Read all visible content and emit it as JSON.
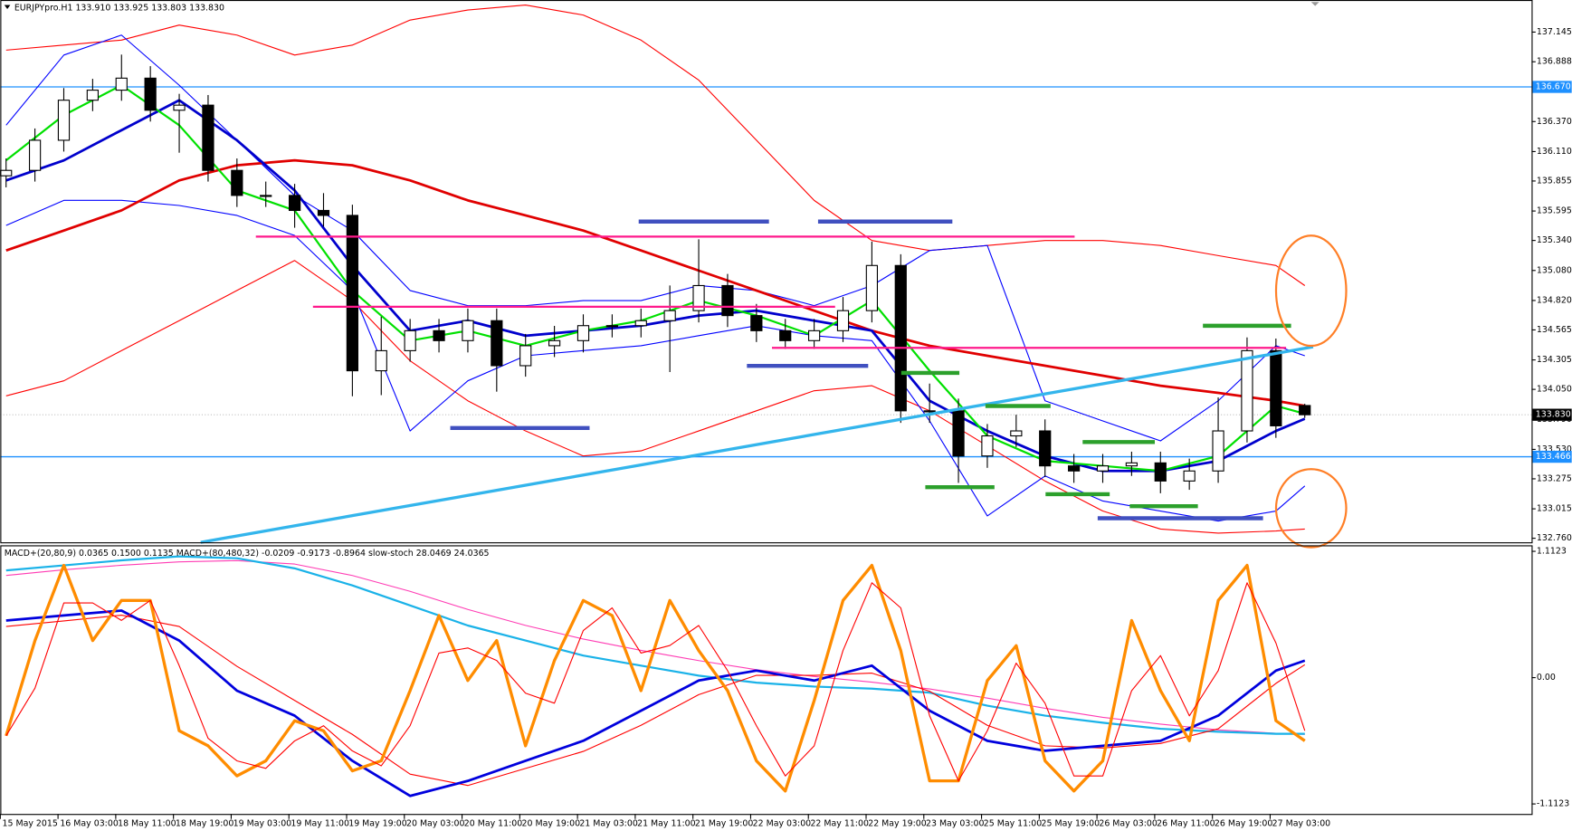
{
  "chart_data": {
    "type": "candlestick",
    "header": "EURJPYpro.H1  133.910 133.925 133.803 133.830",
    "up_color": "#ffffff",
    "down_color": "#000000",
    "xlim": [
      -0.2,
      52.86
    ],
    "xticks": [
      {
        "value": -0.2,
        "label": "15 May 2015"
      },
      {
        "value": 1.8,
        "label": "16 May 03:00"
      },
      {
        "value": 3.8,
        "label": "18 May 11:00"
      },
      {
        "value": 5.8,
        "label": "18 May 19:00"
      },
      {
        "value": 7.8,
        "label": "19 May 03:00"
      },
      {
        "value": 9.8,
        "label": "19 May 11:00"
      },
      {
        "value": 11.8,
        "label": "19 May 19:00"
      },
      {
        "value": 13.8,
        "label": "20 May 03:00"
      },
      {
        "value": 15.8,
        "label": "20 May 11:00"
      },
      {
        "value": 17.8,
        "label": "20 May 19:00"
      },
      {
        "value": 19.8,
        "label": "21 May 03:00"
      },
      {
        "value": 21.8,
        "label": "21 May 11:00"
      },
      {
        "value": 23.8,
        "label": "21 May 19:00"
      },
      {
        "value": 25.8,
        "label": "22 May 03:00"
      },
      {
        "value": 27.8,
        "label": "22 May 11:00"
      },
      {
        "value": 29.8,
        "label": "22 May 19:00"
      },
      {
        "value": 31.8,
        "label": "23 May 03:00"
      },
      {
        "value": 33.8,
        "label": "25 May 11:00"
      },
      {
        "value": 35.8,
        "label": "25 May 19:00"
      },
      {
        "value": 37.8,
        "label": "26 May 03:00"
      },
      {
        "value": 39.8,
        "label": "26 May 11:00"
      },
      {
        "value": 41.8,
        "label": "26 May 19:00"
      },
      {
        "value": 43.8,
        "label": "27 May 03:00"
      }
    ],
    "ylim": [
      132.725,
      137.423
    ],
    "yticks": [
      137.145,
      136.888,
      {
        "value": 136.37,
        "label": "136.370"
      },
      {
        "value": 136.11,
        "label": "136.110"
      },
      135.855,
      135.595,
      {
        "value": 135.34,
        "label": "135.340"
      },
      {
        "value": 135.08,
        "label": "135.080"
      },
      {
        "value": 134.82,
        "label": "134.820"
      },
      134.565,
      134.305,
      {
        "value": 134.05,
        "label": "134.050"
      },
      {
        "value": 133.79,
        "label": "133.790"
      },
      {
        "value": 133.53,
        "label": "133.530"
      },
      133.275,
      133.015,
      {
        "value": 132.76,
        "label": "132.760"
      }
    ],
    "hlines": [
      {
        "value": 136.67,
        "label": "136.670",
        "color": "#1e90ff"
      },
      {
        "value": 133.466,
        "color": "#1e90ff"
      }
    ],
    "price_line": {
      "value": 133.83,
      "label": "133.830"
    },
    "candles": [
      [
        135.9,
        136.05,
        135.8,
        135.947
      ],
      [
        135.947,
        136.31,
        135.85,
        136.208
      ],
      [
        136.208,
        136.66,
        136.11,
        136.555
      ],
      [
        136.555,
        136.74,
        136.46,
        136.642
      ],
      [
        136.642,
        136.95,
        136.55,
        136.746
      ],
      [
        136.746,
        136.85,
        136.37,
        136.468
      ],
      [
        136.468,
        136.61,
        136.1,
        136.512
      ],
      [
        136.512,
        136.6,
        135.85,
        135.947
      ],
      [
        135.947,
        136.05,
        135.63,
        135.73
      ],
      [
        135.73,
        135.85,
        135.63,
        135.73
      ],
      [
        135.73,
        135.83,
        135.45,
        135.6
      ],
      [
        135.6,
        135.75,
        135.46,
        135.557
      ],
      [
        135.557,
        135.65,
        133.99,
        134.211
      ],
      [
        134.211,
        134.68,
        134.0,
        134.385
      ],
      [
        134.385,
        134.66,
        134.29,
        134.558
      ],
      [
        134.558,
        134.66,
        134.37,
        134.472
      ],
      [
        134.472,
        134.75,
        134.37,
        134.645
      ],
      [
        134.645,
        134.75,
        134.03,
        134.255
      ],
      [
        134.255,
        134.53,
        134.16,
        134.428
      ],
      [
        134.428,
        134.6,
        134.33,
        134.472
      ],
      [
        134.472,
        134.7,
        134.37,
        134.602
      ],
      [
        134.602,
        134.7,
        134.5,
        134.602
      ],
      [
        134.602,
        134.75,
        134.5,
        134.645
      ],
      [
        134.645,
        134.95,
        134.2,
        134.732
      ],
      [
        134.732,
        135.35,
        134.63,
        134.949
      ],
      [
        134.949,
        135.05,
        134.59,
        134.689
      ],
      [
        134.689,
        134.79,
        134.46,
        134.558
      ],
      [
        134.558,
        134.66,
        134.4,
        134.472
      ],
      [
        134.472,
        134.66,
        134.4,
        134.558
      ],
      [
        134.558,
        134.85,
        134.46,
        134.732
      ],
      [
        134.732,
        135.33,
        134.63,
        135.123
      ],
      [
        135.123,
        135.22,
        133.76,
        133.864
      ],
      [
        133.864,
        134.1,
        133.76,
        133.864
      ],
      [
        133.864,
        133.97,
        133.24,
        133.473
      ],
      [
        133.473,
        133.75,
        133.37,
        133.647
      ],
      [
        133.647,
        133.83,
        133.55,
        133.69
      ],
      [
        133.69,
        133.79,
        133.29,
        133.387
      ],
      [
        133.387,
        133.49,
        133.24,
        133.343
      ],
      [
        133.343,
        133.49,
        133.24,
        133.387
      ],
      [
        133.387,
        133.51,
        133.3,
        133.413
      ],
      [
        133.413,
        133.51,
        133.15,
        133.256
      ],
      [
        133.256,
        133.45,
        133.18,
        133.343
      ],
      [
        133.343,
        133.98,
        133.24,
        133.69
      ],
      [
        133.69,
        134.5,
        133.59,
        134.385
      ],
      [
        134.385,
        134.49,
        133.63,
        133.734
      ],
      [
        133.91,
        133.925,
        133.803,
        133.83
      ]
    ],
    "line_x": [
      0,
      2,
      4,
      6,
      8,
      10,
      12,
      14,
      16,
      18,
      20,
      22,
      24,
      26,
      28,
      30,
      32,
      34,
      36,
      38,
      40,
      42,
      44,
      45
    ],
    "series": [
      {
        "color": "#ff0000",
        "width": 1,
        "values": [
          136.989,
          137.032,
          137.076,
          137.206,
          137.119,
          136.946,
          137.032,
          137.249,
          137.336,
          137.38,
          137.293,
          137.076,
          136.729,
          136.208,
          135.687,
          135.34,
          135.253,
          135.296,
          135.34,
          135.34,
          135.296,
          135.209,
          135.123,
          134.949
        ]
      },
      {
        "color": "#ff0000",
        "width": 1,
        "values": [
          133.994,
          134.124,
          134.385,
          134.645,
          134.906,
          135.166,
          134.819,
          134.298,
          133.951,
          133.69,
          133.473,
          133.517,
          133.69,
          133.864,
          134.038,
          134.081,
          133.864,
          133.56,
          133.256,
          132.996,
          132.84,
          132.805,
          132.823,
          132.84
        ]
      },
      {
        "color": "#0000ff",
        "width": 1,
        "values": [
          136.338,
          136.946,
          137.119,
          136.685,
          136.208,
          135.73,
          135.426,
          134.906,
          134.775,
          134.775,
          134.819,
          134.819,
          134.949,
          134.906,
          134.775,
          134.949,
          135.253,
          135.296,
          133.951,
          133.777,
          133.604,
          133.951,
          134.428,
          134.341
        ]
      },
      {
        "color": "#0000ff",
        "width": 1,
        "values": [
          135.47,
          135.687,
          135.687,
          135.643,
          135.557,
          135.383,
          134.906,
          133.69,
          134.124,
          134.341,
          134.385,
          134.428,
          134.515,
          134.602,
          134.515,
          134.472,
          133.777,
          132.953,
          133.3,
          133.083,
          132.996,
          132.909,
          132.996,
          133.213
        ]
      },
      {
        "color": "#e00000",
        "width": 2.5,
        "values": [
          135.253,
          135.426,
          135.6,
          135.86,
          135.991,
          136.034,
          135.991,
          135.86,
          135.687,
          135.557,
          135.426,
          135.253,
          135.079,
          134.906,
          134.732,
          134.558,
          134.428,
          134.341,
          134.255,
          134.168,
          134.081,
          134.02,
          133.951,
          133.907
        ]
      },
      {
        "color": "#0000cc",
        "width": 2.5,
        "values": [
          135.86,
          136.034,
          136.295,
          136.555,
          136.208,
          135.774,
          135.123,
          134.558,
          134.645,
          134.515,
          134.558,
          134.602,
          134.689,
          134.732,
          134.645,
          134.558,
          133.951,
          133.69,
          133.473,
          133.343,
          133.343,
          133.43,
          133.69,
          133.795
        ]
      },
      {
        "color": "#00e000",
        "width": 2,
        "values": [
          136.034,
          136.425,
          136.685,
          136.338,
          135.774,
          135.6,
          134.906,
          134.472,
          134.558,
          134.428,
          134.558,
          134.645,
          134.819,
          134.689,
          134.515,
          134.819,
          134.211,
          133.647,
          133.43,
          133.387,
          133.343,
          133.473,
          133.907,
          133.838
        ]
      }
    ],
    "indicator": {
      "header": "MACD+(20,80,9) 0.0365 0.1500 0.1135   MACD+(80,480,32) -0.0209 -0.9173 -0.8964   slow-stoch 28.0469 24.0365",
      "ylim": [
        -1.2006,
        1.1653
      ],
      "yticks": [
        1.1123,
        {
          "value": 0,
          "label": "0.00"
        },
        -1.1123
      ],
      "series": [
        {
          "color": "#ff3cb4",
          "width": 1,
          "values": [
            0.9,
            0.95,
            0.99,
            1.02,
            1.03,
            1.0,
            0.9,
            0.76,
            0.6,
            0.46,
            0.34,
            0.24,
            0.15,
            0.07,
            0.01,
            -0.04,
            -0.1,
            -0.18,
            -0.27,
            -0.35,
            -0.41,
            -0.46,
            -0.49,
            -0.5
          ]
        },
        {
          "color": "#1ab2e8",
          "width": 2,
          "values": [
            0.945,
            0.989,
            1.033,
            1.068,
            1.051,
            0.962,
            0.812,
            0.636,
            0.459,
            0.327,
            0.194,
            0.106,
            0.018,
            -0.044,
            -0.079,
            -0.097,
            -0.132,
            -0.247,
            -0.335,
            -0.397,
            -0.45,
            -0.477,
            -0.494,
            -0.494
          ]
        },
        {
          "color": "#ff0000",
          "width": 1,
          "values": [
            0.45,
            0.5,
            0.55,
            0.45,
            0.1,
            -0.2,
            -0.5,
            -0.85,
            -0.95,
            -0.8,
            -0.65,
            -0.42,
            -0.15,
            0.02,
            0.02,
            0.04,
            -0.12,
            -0.42,
            -0.6,
            -0.62,
            -0.58,
            -0.45,
            -0.05,
            0.1135
          ]
        },
        {
          "color": "#0000dd",
          "width": 2.5,
          "values": [
            0.503,
            0.547,
            0.591,
            0.327,
            -0.115,
            -0.335,
            -0.733,
            -1.042,
            -0.909,
            -0.733,
            -0.556,
            -0.291,
            -0.026,
            0.062,
            -0.026,
            0.106,
            -0.291,
            -0.556,
            -0.644,
            -0.6,
            -0.556,
            -0.335,
            0.062,
            0.15
          ]
        },
        {
          "color": "#ff8c00",
          "width": 3,
          "values": [
            -0.512,
            0.327,
            0.989,
            0.327,
            0.68,
            0.68,
            -0.468,
            -0.6,
            -0.865,
            -0.733,
            -0.38,
            -0.468,
            -0.821,
            -0.733,
            -0.115,
            0.547,
            -0.026,
            0.327,
            -0.6,
            0.15,
            0.68,
            0.547,
            -0.115,
            0.68,
            0.238,
            -0.115,
            -0.733,
            -0.998,
            -0.203,
            0.68,
            0.989,
            0.238,
            -0.909,
            -0.909,
            -0.026,
            0.282,
            -0.733,
            -0.998,
            -0.733,
            0.503,
            -0.115,
            -0.556,
            0.68,
            0.989,
            -0.38,
            -0.556
          ]
        },
        {
          "color": "#ff0000",
          "width": 1,
          "values": [
            -0.512,
            -0.093,
            0.658,
            0.658,
            0.504,
            0.68,
            0.106,
            -0.534,
            -0.733,
            -0.799,
            -0.557,
            -0.424,
            -0.645,
            -0.777,
            -0.424,
            0.216,
            0.261,
            0.151,
            -0.137,
            -0.225,
            0.415,
            0.614,
            0.216,
            0.283,
            0.459,
            0.062,
            -0.424,
            -0.866,
            -0.601,
            0.239,
            0.835,
            0.614,
            -0.336,
            -0.909,
            -0.468,
            0.128,
            -0.226,
            -0.866,
            -0.866,
            -0.115,
            0.194,
            -0.336,
            0.062,
            0.835,
            0.305,
            -0.468
          ]
        }
      ]
    }
  }
}
